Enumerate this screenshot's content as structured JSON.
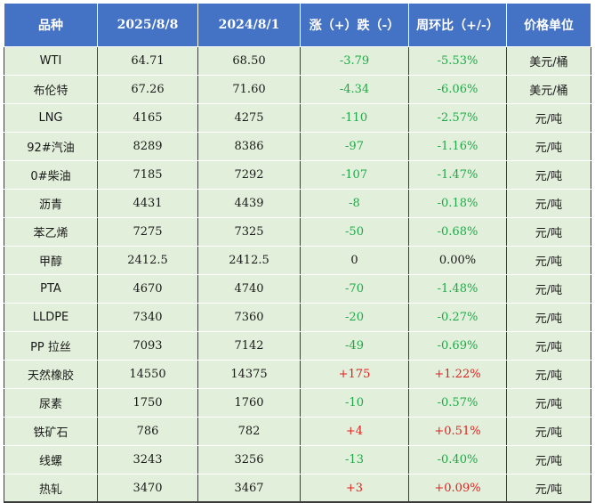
{
  "table": {
    "headers": [
      "品种",
      "2025/8/8",
      "2024/8/1",
      "涨（+）跌（-）",
      "周环比（+/-）",
      "价格单位"
    ],
    "colors": {
      "header_bg": "#4472c4",
      "row_bg": "#e2efda",
      "down": "#22a84a",
      "up": "#e02020"
    },
    "rows": [
      {
        "name": "WTI",
        "cur": "64.71",
        "prev": "68.50",
        "change": "-3.79",
        "pct": "-5.53%",
        "unit": "美元/桶",
        "dir": "neg"
      },
      {
        "name": "布伦特",
        "cur": "67.26",
        "prev": "71.60",
        "change": "-4.34",
        "pct": "-6.06%",
        "unit": "美元/桶",
        "dir": "neg"
      },
      {
        "name": "LNG",
        "cur": "4165",
        "prev": "4275",
        "change": "-110",
        "pct": "-2.57%",
        "unit": "元/吨",
        "dir": "neg"
      },
      {
        "name": "92#汽油",
        "cur": "8289",
        "prev": "8386",
        "change": "-97",
        "pct": "-1.16%",
        "unit": "元/吨",
        "dir": "neg"
      },
      {
        "name": "0#柴油",
        "cur": "7185",
        "prev": "7292",
        "change": "-107",
        "pct": "-1.47%",
        "unit": "元/吨",
        "dir": "neg"
      },
      {
        "name": "沥青",
        "cur": "4431",
        "prev": "4439",
        "change": "-8",
        "pct": "-0.18%",
        "unit": "元/吨",
        "dir": "neg"
      },
      {
        "name": "苯乙烯",
        "cur": "7275",
        "prev": "7325",
        "change": "-50",
        "pct": "-0.68%",
        "unit": "元/吨",
        "dir": "neg"
      },
      {
        "name": "甲醇",
        "cur": "2412.5",
        "prev": "2412.5",
        "change": "0",
        "pct": "0.00%",
        "unit": "元/吨",
        "dir": "zero"
      },
      {
        "name": "PTA",
        "cur": "4670",
        "prev": "4740",
        "change": "-70",
        "pct": "-1.48%",
        "unit": "元/吨",
        "dir": "neg"
      },
      {
        "name": "LLDPE",
        "cur": "7340",
        "prev": "7360",
        "change": "-20",
        "pct": "-0.27%",
        "unit": "元/吨",
        "dir": "neg"
      },
      {
        "name": "PP 拉丝",
        "cur": "7093",
        "prev": "7142",
        "change": "-49",
        "pct": "-0.69%",
        "unit": "元/吨",
        "dir": "neg"
      },
      {
        "name": "天然橡胶",
        "cur": "14550",
        "prev": "14375",
        "change": "+175",
        "pct": "+1.22%",
        "unit": "元/吨",
        "dir": "pos"
      },
      {
        "name": "尿素",
        "cur": "1750",
        "prev": "1760",
        "change": "-10",
        "pct": "-0.57%",
        "unit": "元/吨",
        "dir": "neg"
      },
      {
        "name": "铁矿石",
        "cur": "786",
        "prev": "782",
        "change": "+4",
        "pct": "+0.51%",
        "unit": "元/吨",
        "dir": "pos"
      },
      {
        "name": "线螺",
        "cur": "3243",
        "prev": "3256",
        "change": "-13",
        "pct": "-0.40%",
        "unit": "元/吨",
        "dir": "neg"
      },
      {
        "name": "热轧",
        "cur": "3470",
        "prev": "3467",
        "change": "+3",
        "pct": "+0.09%",
        "unit": "元/吨",
        "dir": "pos"
      }
    ]
  }
}
